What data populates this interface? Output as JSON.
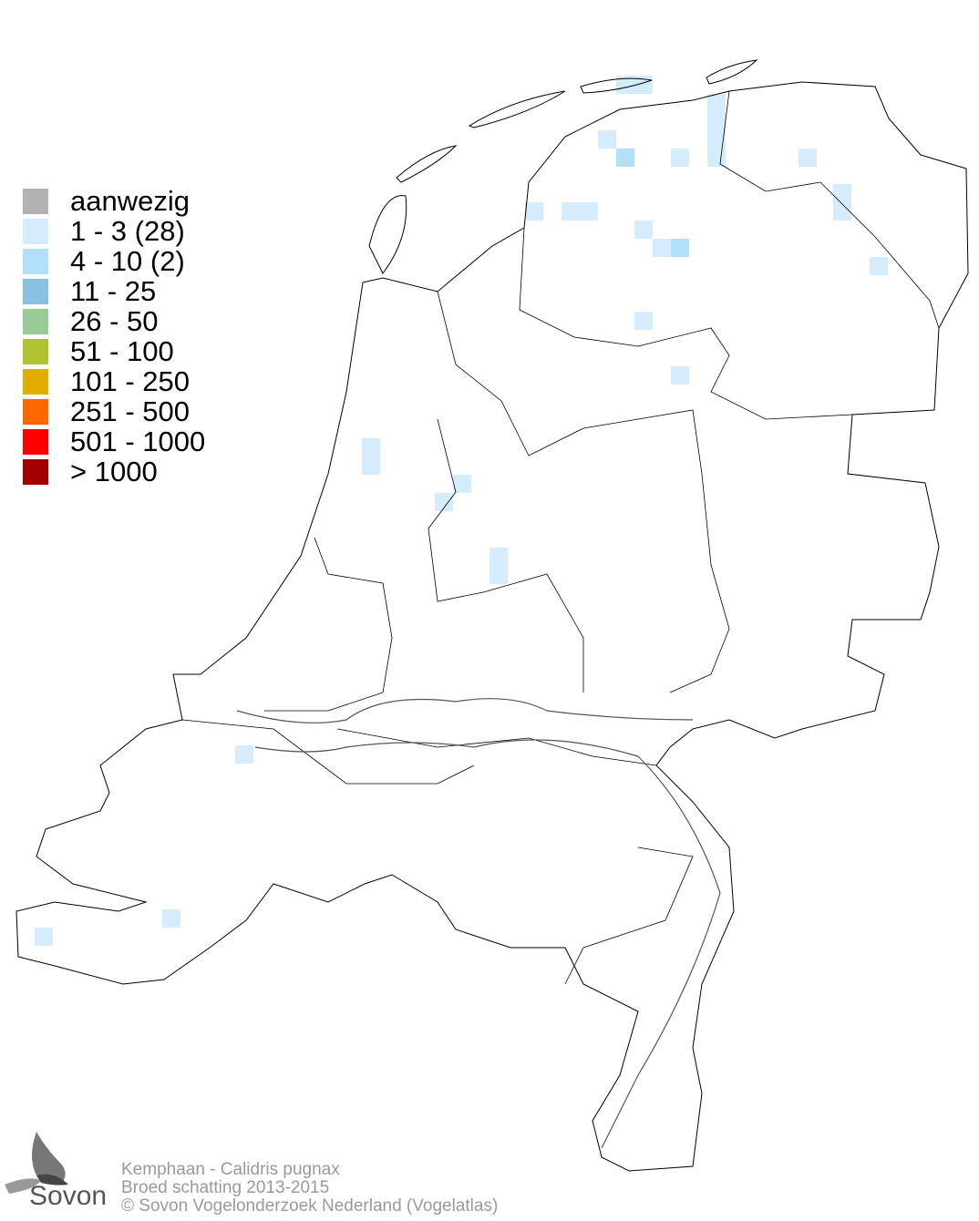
{
  "legend": {
    "items": [
      {
        "label": "aanwezig",
        "color": "#b2b2b2"
      },
      {
        "label": "1 - 3 (28)",
        "color": "#d4ecfb"
      },
      {
        "label": "4 - 10 (2)",
        "color": "#b1e1fa"
      },
      {
        "label": "11 - 25",
        "color": "#86c1df"
      },
      {
        "label": "26 - 50",
        "color": "#98cc94"
      },
      {
        "label": "51 - 100",
        "color": "#b0c232"
      },
      {
        "label": "101 - 250",
        "color": "#e0ad00"
      },
      {
        "label": "251 - 500",
        "color": "#ff6600"
      },
      {
        "label": "501 - 1000",
        "color": "#ff0000"
      },
      {
        "label": "> 1000",
        "color": "#a30000"
      }
    ]
  },
  "footer": {
    "species": "Kemphaan - Calidris pugnax",
    "subtitle": "Broed schatting 2013-2015",
    "copyright": "© Sovon Vogelonderzoek Nederland (Vogelatlas)"
  },
  "logo": {
    "text": "Sovon"
  }
}
